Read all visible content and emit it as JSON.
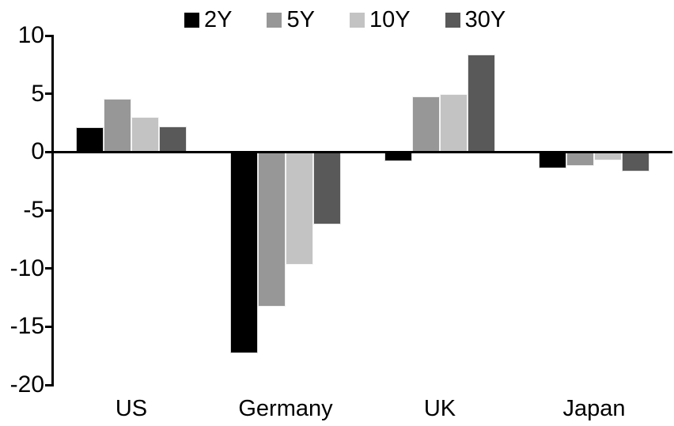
{
  "chart_data": {
    "type": "bar",
    "title": "",
    "xlabel": "",
    "ylabel": "",
    "categories": [
      "US",
      "Germany",
      "UK",
      "Japan"
    ],
    "series": [
      {
        "name": "2Y",
        "color": "#000000",
        "values": [
          2.1,
          -17.3,
          -0.8,
          -1.4
        ]
      },
      {
        "name": "5Y",
        "color": "#979797",
        "values": [
          4.6,
          -13.3,
          4.8,
          -1.2
        ]
      },
      {
        "name": "10Y",
        "color": "#c3c3c3",
        "values": [
          3.0,
          -9.7,
          5.0,
          -0.7
        ]
      },
      {
        "name": "30Y",
        "color": "#595959",
        "values": [
          2.2,
          -6.2,
          8.4,
          -1.7
        ]
      }
    ],
    "ylim": [
      -20,
      10
    ],
    "yticks": [
      10,
      5,
      0,
      -5,
      -10,
      -15,
      -20
    ],
    "legend_position": "top",
    "grid": false,
    "axis_color": "#000000",
    "background_color": "#ffffff"
  }
}
